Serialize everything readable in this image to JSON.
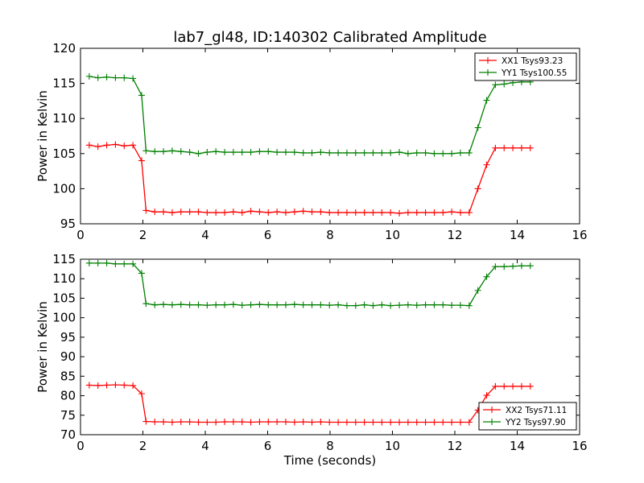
{
  "figure": {
    "title": "lab7_gl48, ID:140302 Calibrated Amplitude",
    "xlabel": "Time (seconds)"
  },
  "chart_data": [
    {
      "type": "line",
      "ylabel": "Power in Kelvin",
      "xlim": [
        0,
        16
      ],
      "ylim": [
        95,
        120
      ],
      "xticks": [
        0,
        2,
        4,
        6,
        8,
        10,
        12,
        14,
        16
      ],
      "yticks": [
        95,
        100,
        105,
        110,
        115,
        120
      ],
      "legend_position": "top-right",
      "x": [
        0.28,
        0.56,
        0.84,
        1.12,
        1.4,
        1.68,
        1.96,
        2.1,
        2.38,
        2.66,
        2.94,
        3.22,
        3.5,
        3.78,
        4.06,
        4.34,
        4.62,
        4.9,
        5.18,
        5.46,
        5.74,
        6.02,
        6.3,
        6.58,
        6.86,
        7.14,
        7.42,
        7.7,
        7.98,
        8.26,
        8.54,
        8.82,
        9.1,
        9.38,
        9.66,
        9.94,
        10.22,
        10.5,
        10.78,
        11.06,
        11.34,
        11.62,
        11.9,
        12.18,
        12.46,
        12.74,
        13.02,
        13.3,
        13.58,
        13.86,
        14.14,
        14.42
      ],
      "series": [
        {
          "name": "XX1 Tsys93.23",
          "color": "#ff0000",
          "values": [
            106.2,
            106.0,
            106.2,
            106.3,
            106.1,
            106.2,
            104.0,
            96.9,
            96.7,
            96.7,
            96.6,
            96.7,
            96.7,
            96.7,
            96.6,
            96.6,
            96.6,
            96.7,
            96.6,
            96.8,
            96.7,
            96.6,
            96.7,
            96.6,
            96.7,
            96.8,
            96.7,
            96.7,
            96.6,
            96.6,
            96.6,
            96.6,
            96.6,
            96.6,
            96.6,
            96.6,
            96.5,
            96.6,
            96.6,
            96.6,
            96.6,
            96.6,
            96.7,
            96.6,
            96.6,
            100.0,
            103.4,
            105.8,
            105.8,
            105.8,
            105.8,
            105.8
          ]
        },
        {
          "name": "YY1 Tsys100.55",
          "color": "#008000",
          "values": [
            116.0,
            115.8,
            115.9,
            115.8,
            115.8,
            115.7,
            113.3,
            105.4,
            105.3,
            105.3,
            105.4,
            105.3,
            105.2,
            105.0,
            105.2,
            105.3,
            105.2,
            105.2,
            105.2,
            105.2,
            105.3,
            105.3,
            105.2,
            105.2,
            105.2,
            105.1,
            105.1,
            105.2,
            105.1,
            105.1,
            105.1,
            105.1,
            105.1,
            105.1,
            105.1,
            105.1,
            105.2,
            105.0,
            105.1,
            105.1,
            105.0,
            105.0,
            105.0,
            105.1,
            105.1,
            108.7,
            112.6,
            114.8,
            114.9,
            115.1,
            115.2,
            115.2
          ]
        }
      ]
    },
    {
      "type": "line",
      "ylabel": "Power in Kelvin",
      "xlabel": "Time (seconds)",
      "xlim": [
        0,
        16
      ],
      "ylim": [
        70,
        115
      ],
      "xticks": [
        0,
        2,
        4,
        6,
        8,
        10,
        12,
        14,
        16
      ],
      "yticks": [
        70,
        75,
        80,
        85,
        90,
        95,
        100,
        105,
        110,
        115
      ],
      "legend_position": "bottom-right",
      "x": [
        0.28,
        0.56,
        0.84,
        1.12,
        1.4,
        1.68,
        1.96,
        2.1,
        2.38,
        2.66,
        2.94,
        3.22,
        3.5,
        3.78,
        4.06,
        4.34,
        4.62,
        4.9,
        5.18,
        5.46,
        5.74,
        6.02,
        6.3,
        6.58,
        6.86,
        7.14,
        7.42,
        7.7,
        7.98,
        8.26,
        8.54,
        8.82,
        9.1,
        9.38,
        9.66,
        9.94,
        10.22,
        10.5,
        10.78,
        11.06,
        11.34,
        11.62,
        11.9,
        12.18,
        12.46,
        12.74,
        13.02,
        13.3,
        13.58,
        13.86,
        14.14,
        14.42
      ],
      "series": [
        {
          "name": "XX2 Tsys71.11",
          "color": "#ff0000",
          "values": [
            82.7,
            82.6,
            82.7,
            82.8,
            82.7,
            82.6,
            80.5,
            73.4,
            73.3,
            73.3,
            73.2,
            73.3,
            73.3,
            73.2,
            73.2,
            73.2,
            73.3,
            73.3,
            73.3,
            73.2,
            73.3,
            73.3,
            73.3,
            73.3,
            73.2,
            73.3,
            73.2,
            73.3,
            73.2,
            73.2,
            73.2,
            73.2,
            73.2,
            73.2,
            73.2,
            73.2,
            73.2,
            73.2,
            73.2,
            73.2,
            73.2,
            73.2,
            73.2,
            73.2,
            73.2,
            76.3,
            80.1,
            82.4,
            82.4,
            82.4,
            82.4,
            82.4
          ]
        },
        {
          "name": "YY2 Tsys97.90",
          "color": "#008000",
          "values": [
            114.0,
            114.0,
            114.0,
            113.8,
            113.8,
            113.8,
            111.4,
            103.6,
            103.3,
            103.4,
            103.3,
            103.4,
            103.3,
            103.3,
            103.2,
            103.3,
            103.3,
            103.4,
            103.2,
            103.3,
            103.4,
            103.3,
            103.3,
            103.3,
            103.4,
            103.3,
            103.3,
            103.3,
            103.2,
            103.3,
            103.1,
            103.1,
            103.3,
            103.1,
            103.3,
            103.1,
            103.2,
            103.3,
            103.2,
            103.3,
            103.3,
            103.3,
            103.2,
            103.2,
            103.1,
            107.0,
            110.5,
            113.1,
            113.1,
            113.2,
            113.3,
            113.3
          ]
        }
      ]
    }
  ]
}
